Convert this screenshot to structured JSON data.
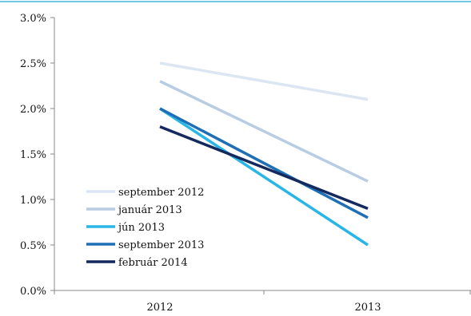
{
  "chart_data": {
    "type": "line",
    "title": "",
    "xlabel": "",
    "ylabel": "",
    "x": [
      "2012",
      "2013"
    ],
    "ylim": [
      0,
      3
    ],
    "yticks": [
      "0.0%",
      "0.5%",
      "1.0%",
      "1.5%",
      "2.0%",
      "2.5%",
      "3.0%"
    ],
    "grid": false,
    "legend_position": "bottom-left",
    "series": [
      {
        "name": "september 2012",
        "values": [
          2.5,
          2.1
        ],
        "color": "#dce6f2"
      },
      {
        "name": "január 2013",
        "values": [
          2.3,
          1.2
        ],
        "color": "#b8cce4"
      },
      {
        "name": "jún 2013",
        "values": [
          2.0,
          0.5
        ],
        "color": "#29b6e6"
      },
      {
        "name": "september 2013",
        "values": [
          2.0,
          0.8
        ],
        "color": "#1f6fb5"
      },
      {
        "name": "február 2014",
        "values": [
          1.8,
          0.9
        ],
        "color": "#14295e"
      }
    ]
  }
}
